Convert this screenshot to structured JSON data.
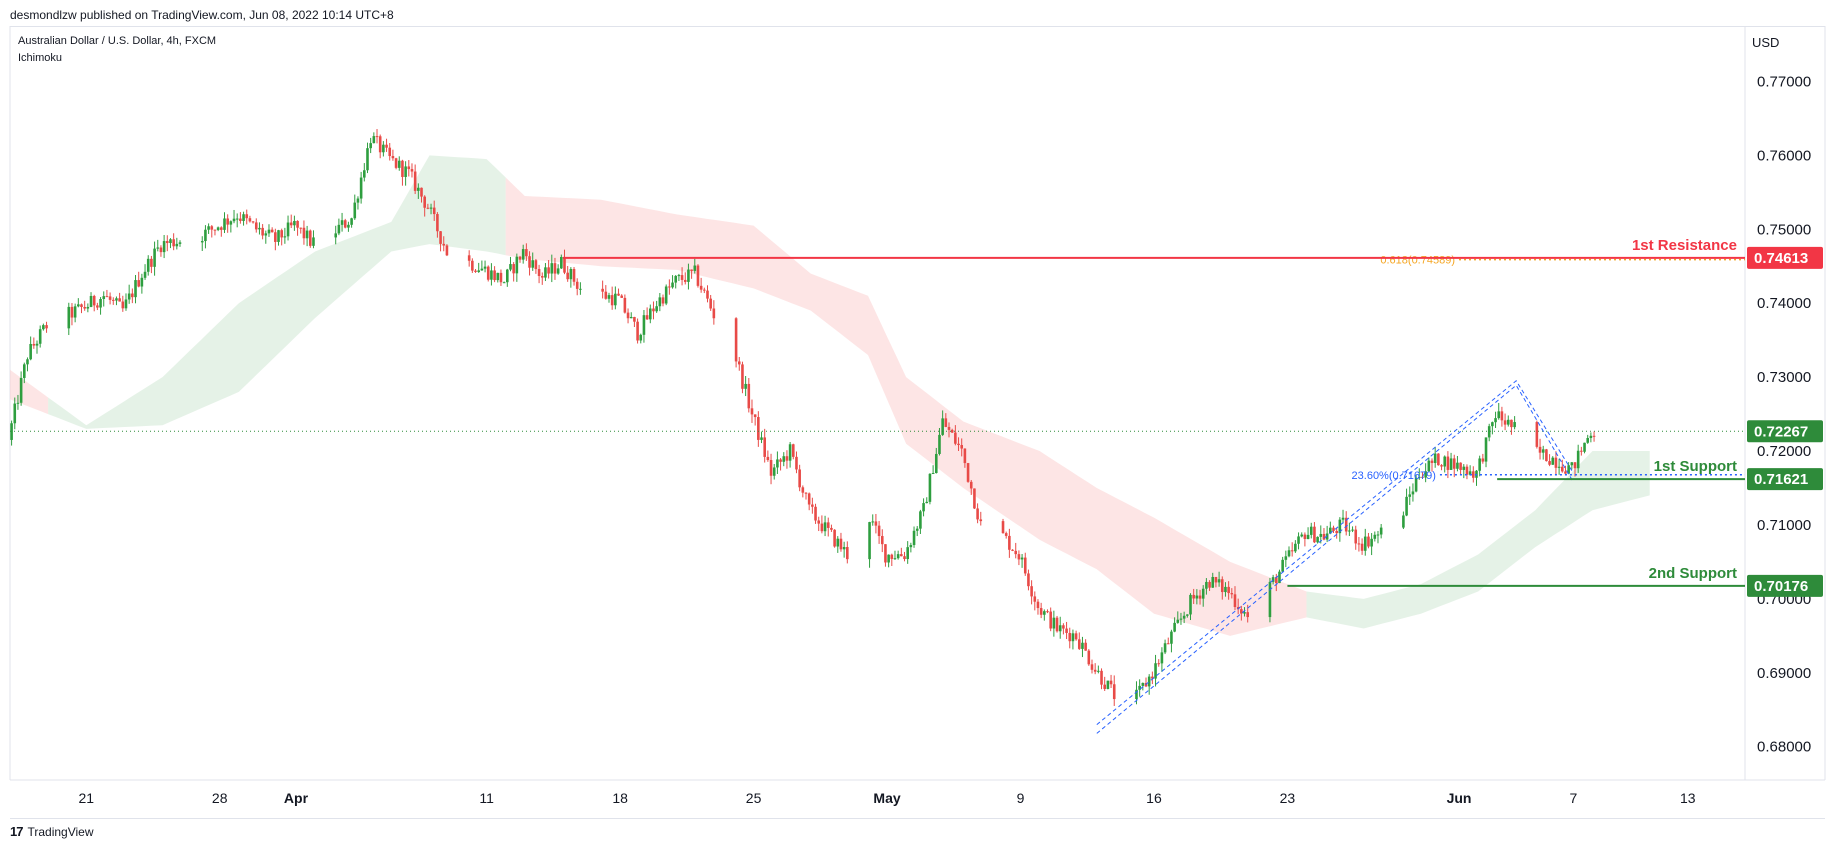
{
  "header": {
    "publisher": "desmondlzw published on TradingView.com, Jun 08, 2022 10:14 UTC+8",
    "chart_title": "Australian Dollar / U.S. Dollar, 4h, FXCM",
    "indicator": "Ichimoku",
    "currency": "USD"
  },
  "footer": {
    "brand": "TradingView",
    "logo": "17"
  },
  "colors": {
    "up": "#26a69a",
    "down": "#ef5350",
    "bull_candle": "#2e9e3f",
    "bear_candle": "#e84a47",
    "resistance": "#f23645",
    "support": "#2e8b3a",
    "fib_blue": "#2962ff",
    "fib_orange": "#f5a623",
    "cloud_green": "#cfe8d3",
    "cloud_red": "#fbd0d0",
    "last_price": "#2e8b3a"
  },
  "chart_data": {
    "type": "candlestick",
    "title": "Australian Dollar / U.S. Dollar, 4h, FXCM",
    "indicator": "Ichimoku",
    "y_axis": {
      "unit": "USD",
      "range": [
        0.6755,
        0.7775
      ],
      "ticks": [
        "0.77000",
        "0.76000",
        "0.75000",
        "0.74000",
        "0.73000",
        "0.72000",
        "0.71000",
        "0.70000",
        "0.69000",
        "0.68000"
      ],
      "tick_values": [
        0.77,
        0.76,
        0.75,
        0.74,
        0.73,
        0.72,
        0.71,
        0.7,
        0.69,
        0.68
      ]
    },
    "x_axis": {
      "range": [
        "2022-03-17",
        "2022-06-16"
      ],
      "ticks": [
        {
          "label": "21",
          "date": "2022-03-21"
        },
        {
          "label": "28",
          "date": "2022-03-28"
        },
        {
          "label": "Apr",
          "date": "2022-04-01",
          "major": true
        },
        {
          "label": "11",
          "date": "2022-04-11"
        },
        {
          "label": "18",
          "date": "2022-04-18"
        },
        {
          "label": "25",
          "date": "2022-04-25"
        },
        {
          "label": "May",
          "date": "2022-05-02",
          "major": true
        },
        {
          "label": "9",
          "date": "2022-05-09"
        },
        {
          "label": "16",
          "date": "2022-05-16"
        },
        {
          "label": "23",
          "date": "2022-05-23"
        },
        {
          "label": "Jun",
          "date": "2022-06-01",
          "major": true
        },
        {
          "label": "7",
          "date": "2022-06-07"
        },
        {
          "label": "13",
          "date": "2022-06-13"
        }
      ]
    },
    "price_path": [
      [
        "2022-03-17",
        0.7215
      ],
      [
        "2022-03-18",
        0.733
      ],
      [
        "2022-03-19",
        0.737
      ],
      [
        "2022-03-21",
        0.7395
      ],
      [
        "2022-03-22",
        0.741
      ],
      [
        "2022-03-23",
        0.739
      ],
      [
        "2022-03-24",
        0.744
      ],
      [
        "2022-03-25",
        0.748
      ],
      [
        "2022-03-27",
        0.749
      ],
      [
        "2022-03-28",
        0.7505
      ],
      [
        "2022-03-29",
        0.752
      ],
      [
        "2022-03-30",
        0.75
      ],
      [
        "2022-03-31",
        0.7485
      ],
      [
        "2022-04-01",
        0.7505
      ],
      [
        "2022-04-02",
        0.748
      ],
      [
        "2022-04-03",
        0.7495
      ],
      [
        "2022-04-04",
        0.7515
      ],
      [
        "2022-04-05",
        0.7625
      ],
      [
        "2022-04-06",
        0.7595
      ],
      [
        "2022-04-07",
        0.7575
      ],
      [
        "2022-04-08",
        0.753
      ],
      [
        "2022-04-09",
        0.747
      ],
      [
        "2022-04-11",
        0.7445
      ],
      [
        "2022-04-12",
        0.743
      ],
      [
        "2022-04-13",
        0.747
      ],
      [
        "2022-04-14",
        0.7435
      ],
      [
        "2022-04-15",
        0.7455
      ],
      [
        "2022-04-16",
        0.742
      ],
      [
        "2022-04-18",
        0.7405
      ],
      [
        "2022-04-19",
        0.736
      ],
      [
        "2022-04-20",
        0.74
      ],
      [
        "2022-04-21",
        0.743
      ],
      [
        "2022-04-22",
        0.744
      ],
      [
        "2022-04-23",
        0.7385
      ],
      [
        "2022-04-24",
        0.734
      ],
      [
        "2022-04-25",
        0.725
      ],
      [
        "2022-04-26",
        0.717
      ],
      [
        "2022-04-27",
        0.72
      ],
      [
        "2022-04-28",
        0.712
      ],
      [
        "2022-04-29",
        0.709
      ],
      [
        "2022-04-30",
        0.706
      ],
      [
        "2022-05-01",
        0.712
      ],
      [
        "2022-05-02",
        0.706
      ],
      [
        "2022-05-03",
        0.706
      ],
      [
        "2022-05-04",
        0.712
      ],
      [
        "2022-05-05",
        0.724
      ],
      [
        "2022-05-06",
        0.72
      ],
      [
        "2022-05-07",
        0.71
      ],
      [
        "2022-05-08",
        0.709
      ],
      [
        "2022-05-09",
        0.706
      ],
      [
        "2022-05-10",
        0.699
      ],
      [
        "2022-05-11",
        0.696
      ],
      [
        "2022-05-12",
        0.695
      ],
      [
        "2022-05-13",
        0.6905
      ],
      [
        "2022-05-14",
        0.687
      ],
      [
        "2022-05-15",
        0.686
      ],
      [
        "2022-05-16",
        0.69
      ],
      [
        "2022-05-17",
        0.695
      ],
      [
        "2022-05-18",
        0.6995
      ],
      [
        "2022-05-19",
        0.7025
      ],
      [
        "2022-05-20",
        0.701
      ],
      [
        "2022-05-21",
        0.6975
      ],
      [
        "2022-05-22",
        0.701
      ],
      [
        "2022-05-23",
        0.705
      ],
      [
        "2022-05-24",
        0.709
      ],
      [
        "2022-05-25",
        0.7085
      ],
      [
        "2022-05-26",
        0.71
      ],
      [
        "2022-05-27",
        0.7075
      ],
      [
        "2022-05-28",
        0.709
      ],
      [
        "2022-05-29",
        0.711
      ],
      [
        "2022-05-30",
        0.717
      ],
      [
        "2022-05-31",
        0.719
      ],
      [
        "2022-06-01",
        0.718
      ],
      [
        "2022-06-02",
        0.717
      ],
      [
        "2022-06-03",
        0.725
      ],
      [
        "2022-06-04",
        0.723
      ],
      [
        "2022-06-05",
        0.72
      ],
      [
        "2022-06-06",
        0.719
      ],
      [
        "2022-06-07",
        0.7175
      ],
      [
        "2022-06-08",
        0.7227
      ]
    ],
    "cloud": {
      "top": [
        [
          "2022-03-17",
          0.731
        ],
        [
          "2022-03-21",
          0.7235
        ],
        [
          "2022-03-25",
          0.73
        ],
        [
          "2022-03-29",
          0.74
        ],
        [
          "2022-04-02",
          0.747
        ],
        [
          "2022-04-06",
          0.751
        ],
        [
          "2022-04-08",
          0.76
        ],
        [
          "2022-04-11",
          0.7595
        ],
        [
          "2022-04-13",
          0.7545
        ],
        [
          "2022-04-17",
          0.754
        ],
        [
          "2022-04-21",
          0.752
        ],
        [
          "2022-04-25",
          0.7505
        ],
        [
          "2022-04-28",
          0.744
        ],
        [
          "2022-05-01",
          0.741
        ],
        [
          "2022-05-03",
          0.73
        ],
        [
          "2022-05-06",
          0.724
        ],
        [
          "2022-05-10",
          0.72
        ],
        [
          "2022-05-13",
          0.715
        ],
        [
          "2022-05-16",
          0.711
        ],
        [
          "2022-05-20",
          0.705
        ],
        [
          "2022-05-24",
          0.701
        ],
        [
          "2022-05-27",
          0.7
        ],
        [
          "2022-05-30",
          0.702
        ],
        [
          "2022-06-02",
          0.706
        ],
        [
          "2022-06-05",
          0.712
        ],
        [
          "2022-06-08",
          0.72
        ],
        [
          "2022-06-11",
          0.72
        ]
      ],
      "bottom": [
        [
          "2022-03-17",
          0.727
        ],
        [
          "2022-03-21",
          0.723
        ],
        [
          "2022-03-25",
          0.7235
        ],
        [
          "2022-03-29",
          0.728
        ],
        [
          "2022-04-02",
          0.738
        ],
        [
          "2022-04-06",
          0.747
        ],
        [
          "2022-04-08",
          0.748
        ],
        [
          "2022-04-11",
          0.747
        ],
        [
          "2022-04-13",
          0.746
        ],
        [
          "2022-04-17",
          0.745
        ],
        [
          "2022-04-21",
          0.7445
        ],
        [
          "2022-04-25",
          0.742
        ],
        [
          "2022-04-28",
          0.739
        ],
        [
          "2022-05-01",
          0.733
        ],
        [
          "2022-05-03",
          0.721
        ],
        [
          "2022-05-06",
          0.715
        ],
        [
          "2022-05-10",
          0.708
        ],
        [
          "2022-05-13",
          0.704
        ],
        [
          "2022-05-16",
          0.698
        ],
        [
          "2022-05-20",
          0.695
        ],
        [
          "2022-05-24",
          0.6975
        ],
        [
          "2022-05-27",
          0.696
        ],
        [
          "2022-05-30",
          0.698
        ],
        [
          "2022-06-02",
          0.701
        ],
        [
          "2022-06-05",
          0.707
        ],
        [
          "2022-06-08",
          0.712
        ],
        [
          "2022-06-11",
          0.714
        ]
      ],
      "flips": [
        "2022-03-19",
        "2022-04-12",
        "2022-05-24"
      ]
    },
    "levels": [
      {
        "name": "1st Resistance",
        "value": 0.74613,
        "badge": "0.74613",
        "start": "2022-04-15",
        "color": "#f23645"
      },
      {
        "name": "1st Support",
        "value": 0.71621,
        "badge": "0.71621",
        "start": "2022-06-03",
        "color": "#2e8b3a"
      },
      {
        "name": "2nd Support",
        "value": 0.70176,
        "badge": "0.70176",
        "start": "2022-05-23",
        "color": "#2e8b3a"
      }
    ],
    "last_price": {
      "value": 0.72267,
      "badge": "0.72267"
    },
    "fib_levels": [
      {
        "label": "23.60%(0.71679)",
        "value": 0.71679,
        "start": "2022-05-31",
        "end": "2022-06-08",
        "color": "#2962ff"
      },
      {
        "label": "0.618(0.74589)",
        "value": 0.74589,
        "start": "2022-06-01",
        "end": "2022-06-08",
        "color": "#f5a623"
      }
    ],
    "trend_channel": {
      "points": [
        [
          "2022-05-13",
          0.683
        ],
        [
          "2022-06-04",
          0.7295
        ],
        [
          "2022-06-07",
          0.717
        ]
      ],
      "lower_offset": 0.0012
    }
  }
}
